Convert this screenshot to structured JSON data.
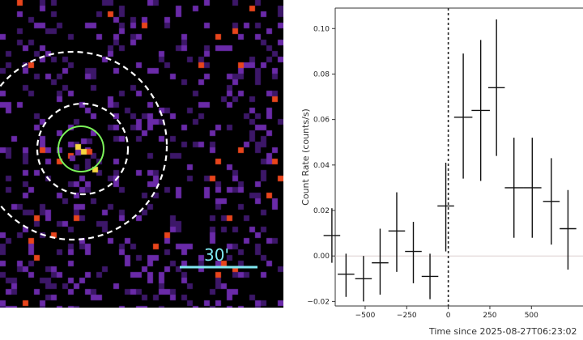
{
  "image_panel": {
    "background": "#000000",
    "pixel_colors": {
      "faint": "#3c1768",
      "medium": "#6a2aa8",
      "bright": "#e8451c",
      "peak": "#f7d640"
    },
    "inner_circle_color": "#7cf55a",
    "annulus_color": "#ffffff",
    "scale_bar": {
      "label": "30'",
      "color": "#7fe7f0"
    }
  },
  "chart_data": {
    "type": "scatter",
    "xlabel": "Time since 2025-08-27T06:23:02",
    "ylabel": "Count Rate (counts/s)",
    "xlim": [
      -680,
      820
    ],
    "ylim": [
      -0.022,
      0.109
    ],
    "x_ticks": [
      -500,
      -250,
      0,
      250,
      500
    ],
    "x_tick_labels": [
      "−500",
      "−250",
      "0",
      "250",
      "500"
    ],
    "y_ticks": [
      -0.02,
      0.0,
      0.02,
      0.04,
      0.06,
      0.08,
      0.1
    ],
    "y_tick_labels": [
      "−0.02",
      "0.00",
      "0.02",
      "0.04",
      "0.06",
      "0.08",
      "0.10"
    ],
    "trigger_time": 0,
    "grid": false,
    "points": [
      {
        "x": -700,
        "xerr": 50,
        "y": 0.009,
        "yerr_low": 0.012,
        "yerr_high": 0.012
      },
      {
        "x": -615,
        "xerr": 50,
        "y": -0.008,
        "yerr_low": 0.01,
        "yerr_high": 0.009
      },
      {
        "x": -510,
        "xerr": 50,
        "y": -0.01,
        "yerr_low": 0.01,
        "yerr_high": 0.01
      },
      {
        "x": -410,
        "xerr": 50,
        "y": -0.003,
        "yerr_low": 0.014,
        "yerr_high": 0.015
      },
      {
        "x": -310,
        "xerr": 50,
        "y": 0.011,
        "yerr_low": 0.018,
        "yerr_high": 0.017
      },
      {
        "x": -210,
        "xerr": 50,
        "y": 0.002,
        "yerr_low": 0.014,
        "yerr_high": 0.013
      },
      {
        "x": -110,
        "xerr": 50,
        "y": -0.009,
        "yerr_low": 0.01,
        "yerr_high": 0.01
      },
      {
        "x": -15,
        "xerr": 50,
        "y": 0.022,
        "yerr_low": 0.02,
        "yerr_high": 0.019
      },
      {
        "x": 90,
        "xerr": 55,
        "y": 0.061,
        "yerr_low": 0.027,
        "yerr_high": 0.028
      },
      {
        "x": 195,
        "xerr": 55,
        "y": 0.064,
        "yerr_low": 0.031,
        "yerr_high": 0.031
      },
      {
        "x": 290,
        "xerr": 50,
        "y": 0.074,
        "yerr_low": 0.03,
        "yerr_high": 0.03
      },
      {
        "x": 395,
        "xerr": 55,
        "y": 0.03,
        "yerr_low": 0.022,
        "yerr_high": 0.022
      },
      {
        "x": 505,
        "xerr": 55,
        "y": 0.03,
        "yerr_low": 0.022,
        "yerr_high": 0.022
      },
      {
        "x": 620,
        "xerr": 50,
        "y": 0.024,
        "yerr_low": 0.019,
        "yerr_high": 0.019
      },
      {
        "x": 720,
        "xerr": 50,
        "y": 0.012,
        "yerr_low": 0.018,
        "yerr_high": 0.017
      }
    ]
  }
}
